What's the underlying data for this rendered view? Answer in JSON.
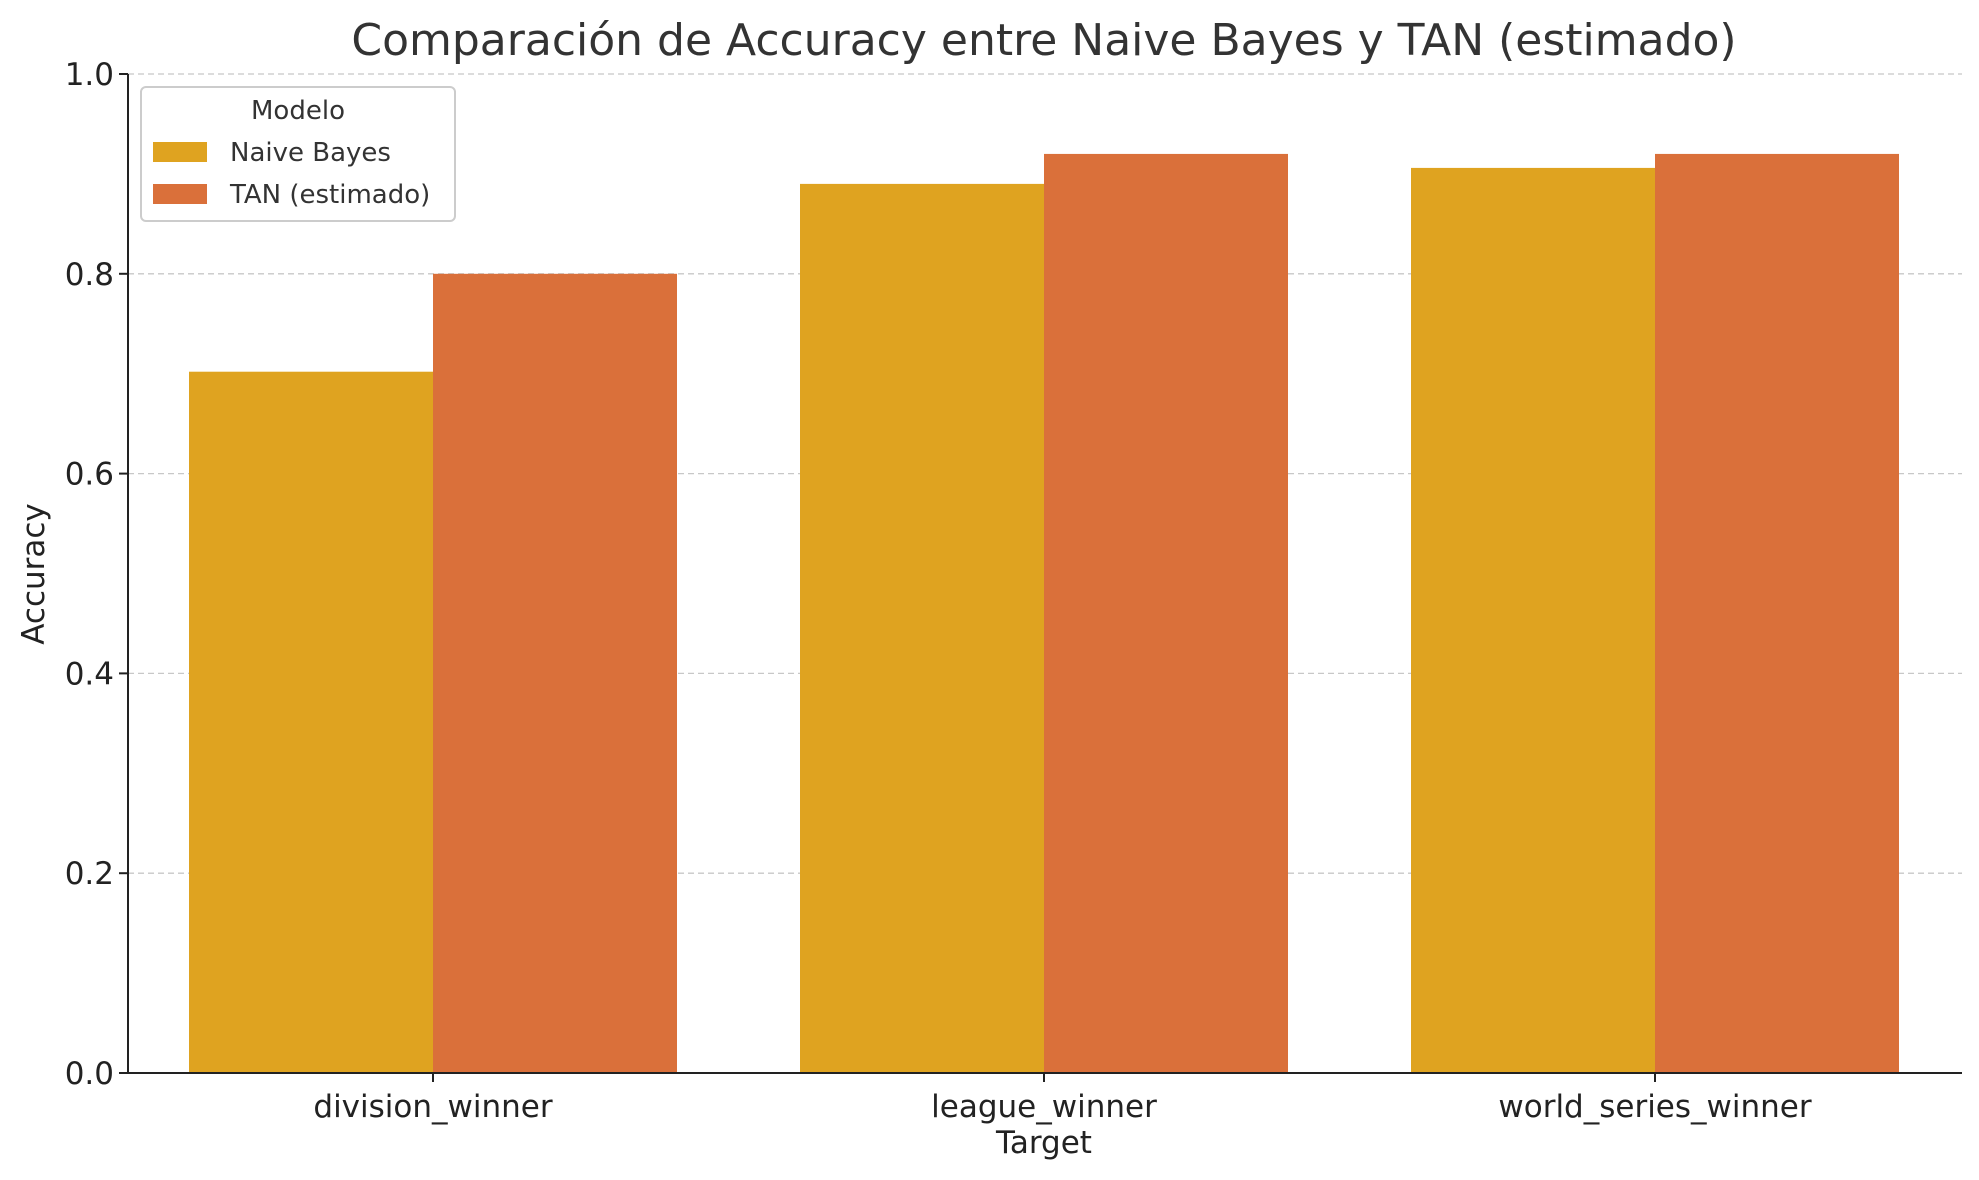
{
  "chart_data": {
    "type": "bar",
    "title": "Comparación de Accuracy entre Naive Bayes y TAN (estimado)",
    "xlabel": "Target",
    "ylabel": "Accuracy",
    "categories": [
      "division_winner",
      "league_winner",
      "world_series_winner"
    ],
    "series": [
      {
        "name": "Naive Bayes",
        "values": [
          0.702,
          0.89,
          0.906
        ],
        "color": "#DFA320"
      },
      {
        "name": "TAN (estimado)",
        "values": [
          0.8,
          0.92,
          0.92
        ],
        "color": "#DA703A"
      }
    ],
    "ylim": [
      0,
      1.0
    ],
    "yticks": [
      "0.0",
      "0.2",
      "0.4",
      "0.6",
      "0.8",
      "1.0"
    ],
    "grid": "horizontal dashed",
    "legend": {
      "title": "Modelo",
      "position": "top-left"
    }
  }
}
